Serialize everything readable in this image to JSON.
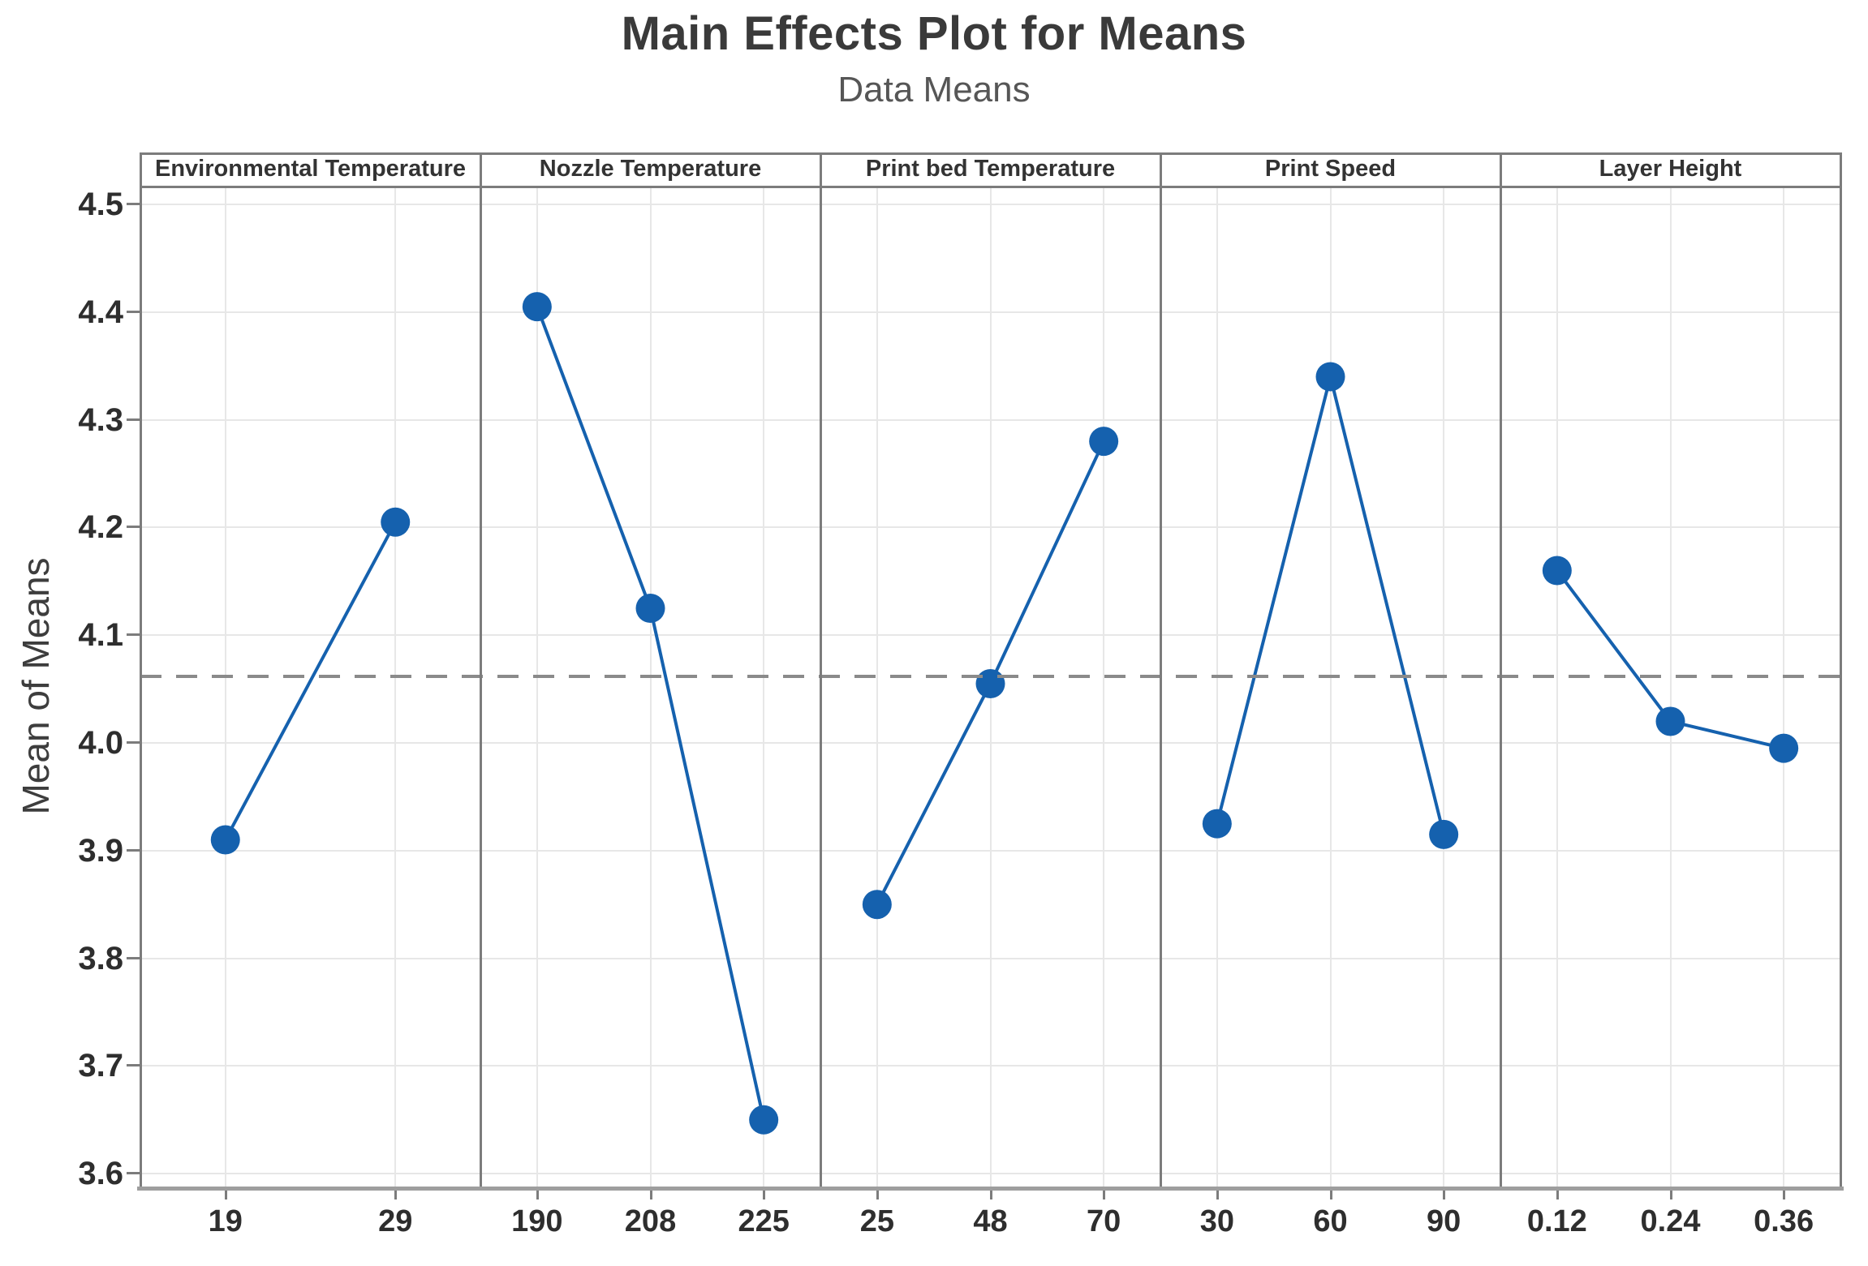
{
  "chart_data": {
    "type": "line",
    "title": "Main Effects Plot for Means",
    "subtitle": "Data Means",
    "ylabel": "Mean of Means",
    "ylim": [
      3.6,
      4.5
    ],
    "grid": true,
    "yticks": [
      "4.5",
      "4.4",
      "4.3",
      "4.2",
      "4.1",
      "4.0",
      "3.9",
      "3.8",
      "3.7",
      "3.6"
    ],
    "ytick_values": [
      4.5,
      4.4,
      4.3,
      4.2,
      4.1,
      4.0,
      3.9,
      3.8,
      3.7,
      3.6
    ],
    "reference_mean": 4.062,
    "panels": [
      {
        "label": "Environmental Temperature",
        "categories": [
          "19",
          "29"
        ],
        "values": [
          3.91,
          4.205
        ]
      },
      {
        "label": "Nozzle Temperature",
        "categories": [
          "190",
          "208",
          "225"
        ],
        "values": [
          4.405,
          4.125,
          3.65
        ]
      },
      {
        "label": "Print bed Temperature",
        "categories": [
          "25",
          "48",
          "70"
        ],
        "values": [
          3.85,
          4.055,
          4.28
        ]
      },
      {
        "label": "Print Speed",
        "categories": [
          "30",
          "60",
          "90"
        ],
        "values": [
          3.925,
          4.34,
          3.915
        ]
      },
      {
        "label": "Layer Height",
        "categories": [
          "0.12",
          "0.24",
          "0.36"
        ],
        "values": [
          4.16,
          4.02,
          3.995
        ]
      }
    ],
    "colors": {
      "series": "#1561ae",
      "grid": "#e7e7e7",
      "panel_border": "#7c7c7c",
      "axis": "#9e9e9e",
      "reference_line": "#8a8a8a",
      "text": "#2e2e2e"
    }
  }
}
